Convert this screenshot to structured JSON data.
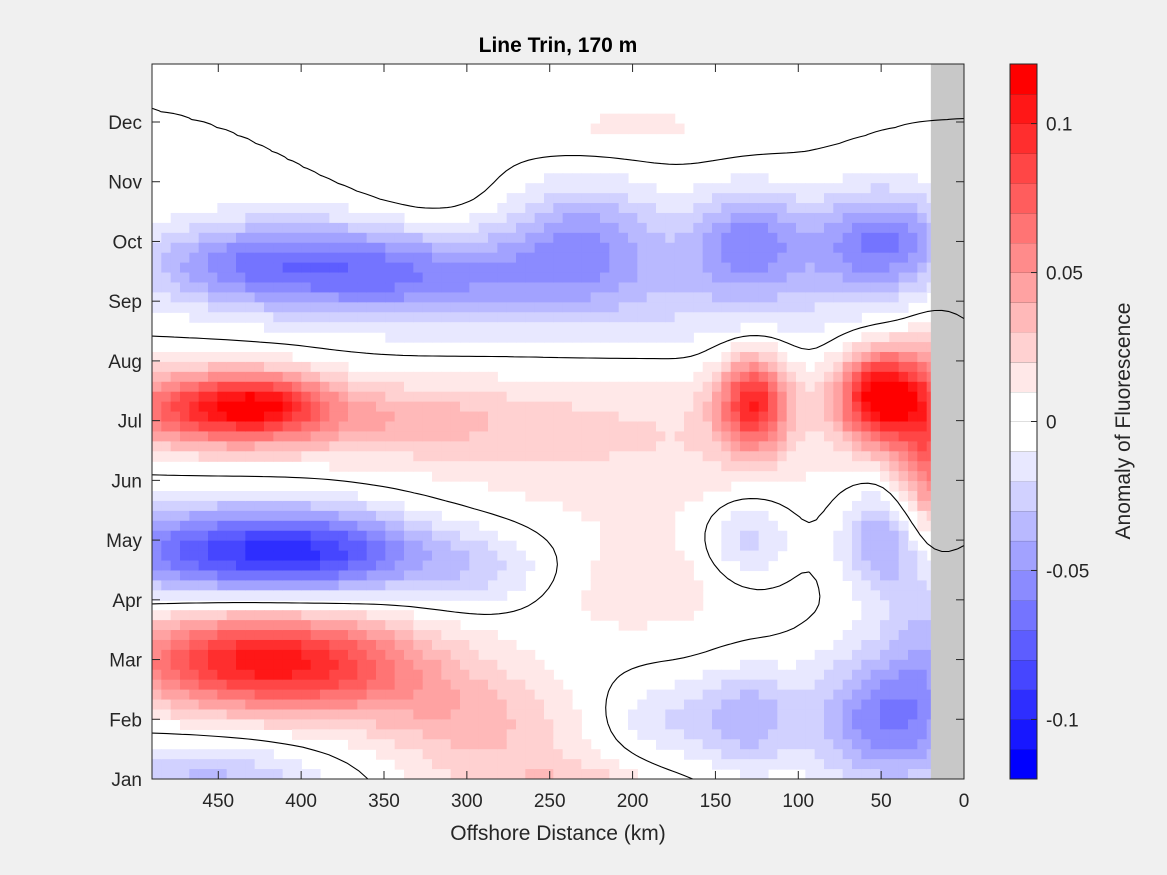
{
  "chart_data": {
    "type": "heatmap",
    "subtype": "filled-contour",
    "title": "Line Trin, 170 m",
    "xlabel": "Offshore Distance (km)",
    "ylabel": "",
    "colorbar_label": "Anomaly of Fluorescence",
    "x_reversed": true,
    "xlim": [
      0,
      490
    ],
    "x_ticks": [
      450,
      400,
      350,
      300,
      250,
      200,
      150,
      100,
      50,
      0
    ],
    "y_ticks": [
      "Jan",
      "Feb",
      "Mar",
      "Apr",
      "May",
      "Jun",
      "Jul",
      "Aug",
      "Sep",
      "Oct",
      "Nov",
      "Dec"
    ],
    "colorbar_range": [
      -0.12,
      0.12
    ],
    "colorbar_levels": 24,
    "colorbar_ticks": [
      {
        "value": 0.1,
        "label": "0.1"
      },
      {
        "value": 0.05,
        "label": "0.05"
      },
      {
        "value": 0,
        "label": "0"
      },
      {
        "value": -0.05,
        "label": "-0.05"
      },
      {
        "value": -0.1,
        "label": "-0.1"
      }
    ],
    "no_data_x_range": [
      0,
      20
    ],
    "colors": {
      "positive": "#ff0000",
      "negative": "#0000ff",
      "zero": "#ffffff",
      "no_data": "#c8c8c8",
      "background": "#f0f0f0"
    },
    "blobs": [
      {
        "x": 455,
        "m": 4.8,
        "sx": 45,
        "sm": 0.45,
        "a": 0.085
      },
      {
        "x": 420,
        "m": 4.7,
        "sx": 25,
        "sm": 0.35,
        "a": 0.04
      },
      {
        "x": 350,
        "m": 5.0,
        "sx": 60,
        "sm": 0.45,
        "a": 0.03
      },
      {
        "x": 450,
        "m": 9.0,
        "sx": 55,
        "sm": 0.6,
        "a": 0.06
      },
      {
        "x": 390,
        "m": 9.1,
        "sx": 55,
        "sm": 0.6,
        "a": 0.065
      },
      {
        "x": 300,
        "m": 10.0,
        "sx": 45,
        "sm": 0.6,
        "a": 0.03
      },
      {
        "x": 260,
        "m": 11.5,
        "sx": 45,
        "sm": 0.7,
        "a": 0.03
      },
      {
        "x": 225,
        "m": 11.5,
        "sx": 25,
        "sm": 0.4,
        "a": 0.02
      },
      {
        "x": 450,
        "m": 7.2,
        "sx": 60,
        "sm": 0.55,
        "a": -0.07
      },
      {
        "x": 380,
        "m": 7.2,
        "sx": 45,
        "sm": 0.5,
        "a": -0.05
      },
      {
        "x": 290,
        "m": 7.5,
        "sx": 35,
        "sm": 0.5,
        "a": -0.025
      },
      {
        "x": 450,
        "m": 2.4,
        "sx": 40,
        "sm": 0.5,
        "a": -0.035
      },
      {
        "x": 390,
        "m": 2.4,
        "sx": 45,
        "sm": 0.55,
        "a": -0.045
      },
      {
        "x": 320,
        "m": 2.6,
        "sx": 50,
        "sm": 0.55,
        "a": -0.04
      },
      {
        "x": 230,
        "m": 2.0,
        "sx": 35,
        "sm": 0.7,
        "a": -0.045
      },
      {
        "x": 130,
        "m": 2.0,
        "sx": 25,
        "sm": 0.6,
        "a": -0.05
      },
      {
        "x": 50,
        "m": 2.0,
        "sx": 30,
        "sm": 0.6,
        "a": -0.06
      },
      {
        "x": 170,
        "m": 3.0,
        "sx": 100,
        "sm": 0.7,
        "a": -0.02
      },
      {
        "x": 455,
        "m": 11.4,
        "sx": 50,
        "sm": 0.7,
        "a": -0.04
      },
      {
        "x": 50,
        "m": 10.0,
        "sx": 30,
        "sm": 0.8,
        "a": -0.055
      },
      {
        "x": 130,
        "m": 10.0,
        "sx": 20,
        "sm": 0.6,
        "a": -0.035
      },
      {
        "x": 130,
        "m": 7.0,
        "sx": 18,
        "sm": 0.5,
        "a": -0.03
      },
      {
        "x": 50,
        "m": 7.0,
        "sx": 18,
        "sm": 0.6,
        "a": -0.04
      },
      {
        "x": 20,
        "m": 8.5,
        "sx": 20,
        "sm": 1.5,
        "a": -0.03
      },
      {
        "x": 180,
        "m": 10.0,
        "sx": 25,
        "sm": 0.5,
        "a": -0.02
      },
      {
        "x": 50,
        "m": 4.6,
        "sx": 18,
        "sm": 0.55,
        "a": 0.12
      },
      {
        "x": 127,
        "m": 4.7,
        "sx": 15,
        "sm": 0.55,
        "a": 0.09
      },
      {
        "x": 20,
        "m": 5.5,
        "sx": 15,
        "sm": 1.2,
        "a": 0.07
      },
      {
        "x": 200,
        "m": 5.3,
        "sx": 100,
        "sm": 1.0,
        "a": 0.02
      },
      {
        "x": 200,
        "m": 7.8,
        "sx": 60,
        "sm": 0.7,
        "a": 0.015
      },
      {
        "x": 130,
        "m": 12.0,
        "sx": 70,
        "sm": 0.5,
        "a": 0.012
      },
      {
        "x": 200,
        "m": 0.1,
        "sx": 60,
        "sm": 0.4,
        "a": 0.012
      },
      {
        "x": 320,
        "m": 1.2,
        "sx": 35,
        "sm": 0.6,
        "a": 0.01
      }
    ]
  }
}
